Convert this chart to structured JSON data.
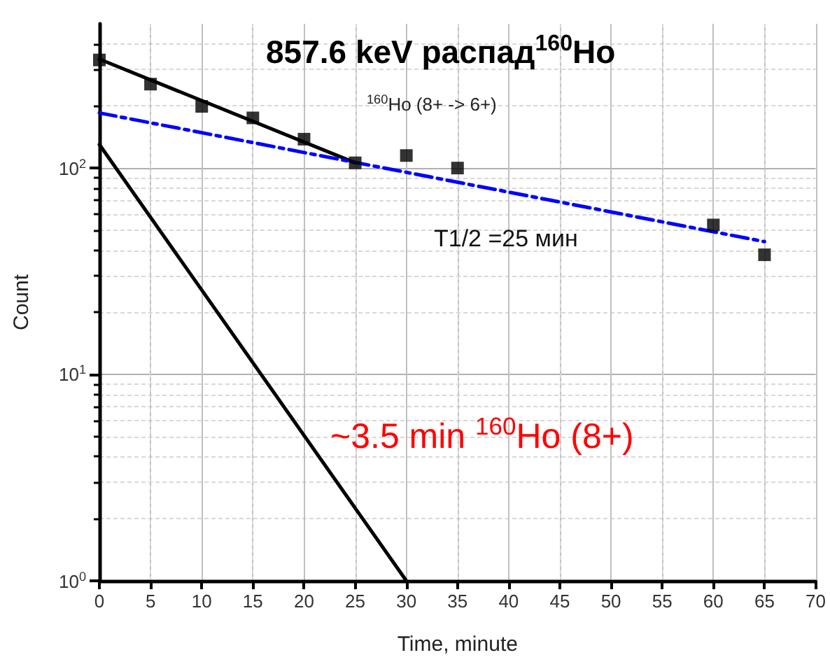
{
  "chart_data": {
    "type": "scatter",
    "title": "857.6 keV распад$^{160}$Ho",
    "xlabel": "Time, minute",
    "ylabel": "Count",
    "annotations": [
      "$^{160}$Ho (8+ -> 6+)",
      "T1/2 =25 мин",
      "~3.5 min $^{160}$Ho (8+)"
    ],
    "log": "y",
    "grid": true,
    "marker": "square",
    "xlim": [
      0,
      70
    ],
    "xticks": [
      0,
      5,
      10,
      15,
      20,
      25,
      30,
      35,
      40,
      45,
      50,
      55,
      60,
      65,
      70
    ],
    "ylim": [
      1,
      500
    ],
    "yticks": [
      {
        "value": 1,
        "label": "10$^{0}$"
      },
      {
        "value": 10,
        "label": "10$^{1}$"
      },
      {
        "value": 100,
        "label": "10$^{2}$"
      }
    ],
    "series": [
      {
        "color": "#000000",
        "x": [
          0,
          5,
          10,
          15,
          20,
          25,
          30,
          35,
          60,
          65
        ],
        "values": [
          334,
          255,
          199,
          175,
          138,
          106,
          115,
          100,
          53,
          38
        ]
      },
      {
        "type": "line",
        "color": "#000000",
        "marker": "none",
        "line_style": "solid",
        "x": [
          0,
          25
        ],
        "values": [
          337,
          106
        ]
      },
      {
        "type": "line",
        "color": "#0000ff",
        "marker": "none",
        "line_style": "dashed",
        "x": [
          0,
          65
        ],
        "values": [
          185,
          44
        ]
      },
      {
        "type": "line",
        "color": "#000000",
        "marker": "none",
        "line_style": "solid",
        "x": [
          0,
          30
        ],
        "values": [
          130,
          1
        ]
      }
    ]
  }
}
